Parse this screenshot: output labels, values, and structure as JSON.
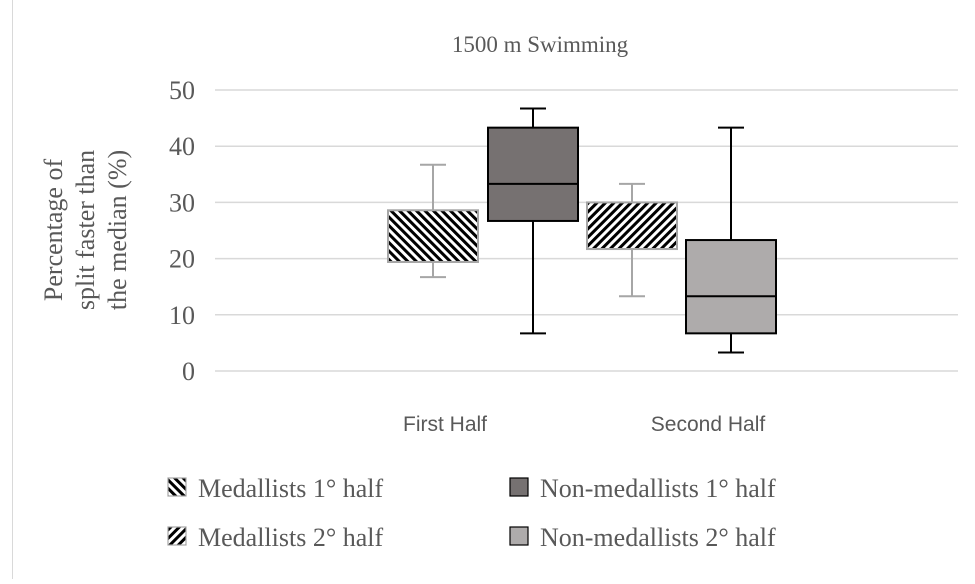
{
  "chart_data": {
    "type": "box",
    "title": "1500 m Swimming",
    "ylabel_lines": [
      "Percentage of",
      "split faster than",
      "the median (%)"
    ],
    "xlabel": "",
    "ylim": [
      0,
      50
    ],
    "yticks": [
      0,
      10,
      20,
      30,
      40,
      50
    ],
    "categories": [
      "First Half",
      "Second Half"
    ],
    "grid": true,
    "legend_position": "bottom",
    "series": [
      {
        "name": "Medallists 1° half",
        "category": "First Half",
        "fill": "hatch-back",
        "color": "#000000",
        "min": 16.7,
        "q1": 19.4,
        "median": 19.4,
        "q3": 28.6,
        "max": 36.7
      },
      {
        "name": "Non-medallists 1° half",
        "category": "First Half",
        "fill": "solid",
        "color": "#767171",
        "min": 6.7,
        "q1": 26.7,
        "median": 33.3,
        "q3": 43.3,
        "max": 46.7
      },
      {
        "name": "Medallists 2° half",
        "category": "Second Half",
        "fill": "hatch-fwd",
        "color": "#000000",
        "min": 13.3,
        "q1": 21.7,
        "median": 21.7,
        "q3": 30.0,
        "max": 33.3
      },
      {
        "name": "Non-medallists 2° half",
        "category": "Second Half",
        "fill": "solid",
        "color": "#aeabab",
        "min": 3.3,
        "q1": 6.7,
        "median": 13.3,
        "q3": 23.3,
        "max": 43.3
      }
    ]
  }
}
